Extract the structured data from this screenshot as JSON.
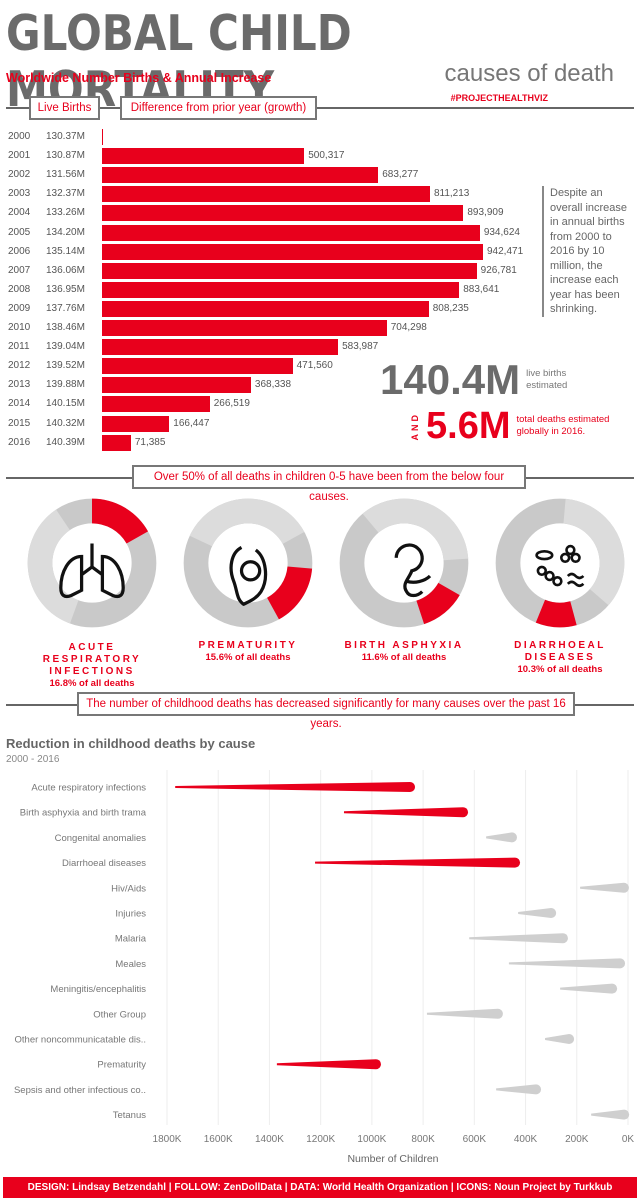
{
  "header": {
    "title": "GLOBAL CHILD MORTALITY",
    "subtitle": "causes of death",
    "hashtag": "#PROJECTHEALTHVIZ"
  },
  "births": {
    "section_title": "Worldwide Number Births & Annual Increase",
    "col_live": "Live Births",
    "col_diff": "Difference from prior year (growth)",
    "note": "Despite an overall increase in annual births from 2000 to 2016 by 10 million, the increase each year has been shrinking.",
    "big_births": "140.4M",
    "big_births_label": "live births estimated",
    "and": "AND",
    "big_deaths": "5.6M",
    "big_deaths_label": "total deaths estimated globally in 2016.",
    "bar_color": "#e8001c"
  },
  "chart_data": [
    {
      "type": "bar",
      "orientation": "horizontal",
      "categories": [
        "2000",
        "2001",
        "2002",
        "2003",
        "2004",
        "2005",
        "2006",
        "2007",
        "2008",
        "2009",
        "2010",
        "2011",
        "2012",
        "2013",
        "2014",
        "2015",
        "2016"
      ],
      "live_births": [
        "130.37M",
        "130.87M",
        "131.56M",
        "132.37M",
        "133.26M",
        "134.20M",
        "135.14M",
        "136.06M",
        "136.95M",
        "137.76M",
        "138.46M",
        "139.04M",
        "139.52M",
        "139.88M",
        "140.15M",
        "140.32M",
        "140.39M"
      ],
      "values": [
        0,
        500317,
        683277,
        811213,
        893909,
        934624,
        942471,
        926781,
        883641,
        808235,
        704298,
        583987,
        471560,
        368338,
        266519,
        166447,
        71385
      ],
      "value_labels": [
        "",
        "500,317",
        "683,277",
        "811,213",
        "893,909",
        "934,624",
        "942,471",
        "926,781",
        "883,641",
        "808,235",
        "704,298",
        "583,987",
        "471,560",
        "368,338",
        "266,519",
        "166,447",
        "71,385"
      ]
    },
    {
      "type": "pie",
      "variant": "donut",
      "banner": "Over 50% of all deaths in children 0-5 have been from the below four causes.",
      "slices": [
        {
          "name": "ACUTE RESPIRATORY INFECTIONS",
          "value": 16.8,
          "label": "16.8% of all deaths",
          "icon": "lungs-icon"
        },
        {
          "name": "PREMATURITY",
          "value": 15.6,
          "label": "15.6% of all deaths",
          "icon": "fetus-icon"
        },
        {
          "name": "BIRTH ASPHYXIA",
          "value": 11.6,
          "label": "11.6% of all deaths",
          "icon": "newborn-icon"
        },
        {
          "name": "DIARRHOEAL DISEASES",
          "value": 10.3,
          "label": "10.3% of all deaths",
          "icon": "bacteria-icon"
        }
      ]
    },
    {
      "type": "range",
      "banner": "The number of childhood deaths has decreased significantly for many causes over the past 16 years.",
      "title": "Reduction in childhood deaths by cause",
      "subtitle": "2000 - 2016",
      "xlabel": "Number of Children",
      "xlim": [
        1800000,
        0
      ],
      "x_reversed": true,
      "grid": true,
      "ticks": [
        "1800K",
        "1600K",
        "1400K",
        "1200K",
        "1000K",
        "800K",
        "600K",
        "400K",
        "200K",
        "0K"
      ],
      "series": [
        {
          "cause": "Acute respiratory infections",
          "y2000": 1768000,
          "y2016": 851000,
          "highlight": true
        },
        {
          "cause": "Birth asphyxia and birth trama",
          "y2000": 1109000,
          "y2016": 644000,
          "highlight": true
        },
        {
          "cause": "Congenital anomalies",
          "y2000": 554000,
          "y2016": 453000,
          "highlight": false
        },
        {
          "cause": "Diarrhoeal diseases",
          "y2000": 1222000,
          "y2016": 441000,
          "highlight": true
        },
        {
          "cause": "Hiv/Aids",
          "y2000": 187000,
          "y2016": 16000,
          "highlight": false
        },
        {
          "cause": "Injuries",
          "y2000": 429000,
          "y2016": 300000,
          "highlight": false
        },
        {
          "cause": "Malaria",
          "y2000": 620000,
          "y2016": 254000,
          "highlight": false
        },
        {
          "cause": "Meales",
          "y2000": 465000,
          "y2016": 31000,
          "highlight": false
        },
        {
          "cause": "Meningitis/encephalitis",
          "y2000": 265000,
          "y2016": 62000,
          "highlight": false
        },
        {
          "cause": "Other Group",
          "y2000": 785000,
          "y2016": 508000,
          "highlight": false
        },
        {
          "cause": "Other noncommunicatable dis..",
          "y2000": 324000,
          "y2016": 230000,
          "highlight": false
        },
        {
          "cause": "Prematurity",
          "y2000": 1371000,
          "y2016": 984000,
          "highlight": true
        },
        {
          "cause": "Sepsis and other infectious co..",
          "y2000": 515000,
          "y2016": 359000,
          "highlight": false
        },
        {
          "cause": "Tetanus",
          "y2000": 144000,
          "y2016": 15000,
          "highlight": false
        }
      ],
      "colors": {
        "highlight": "#e8001c",
        "other": "#cfcfcf"
      }
    }
  ],
  "footer": "DESIGN: Lindsay Betzendahl  |  FOLLOW: ZenDollData  |  DATA: World Health Organization | ICONS: Noun Project by Turkkub"
}
